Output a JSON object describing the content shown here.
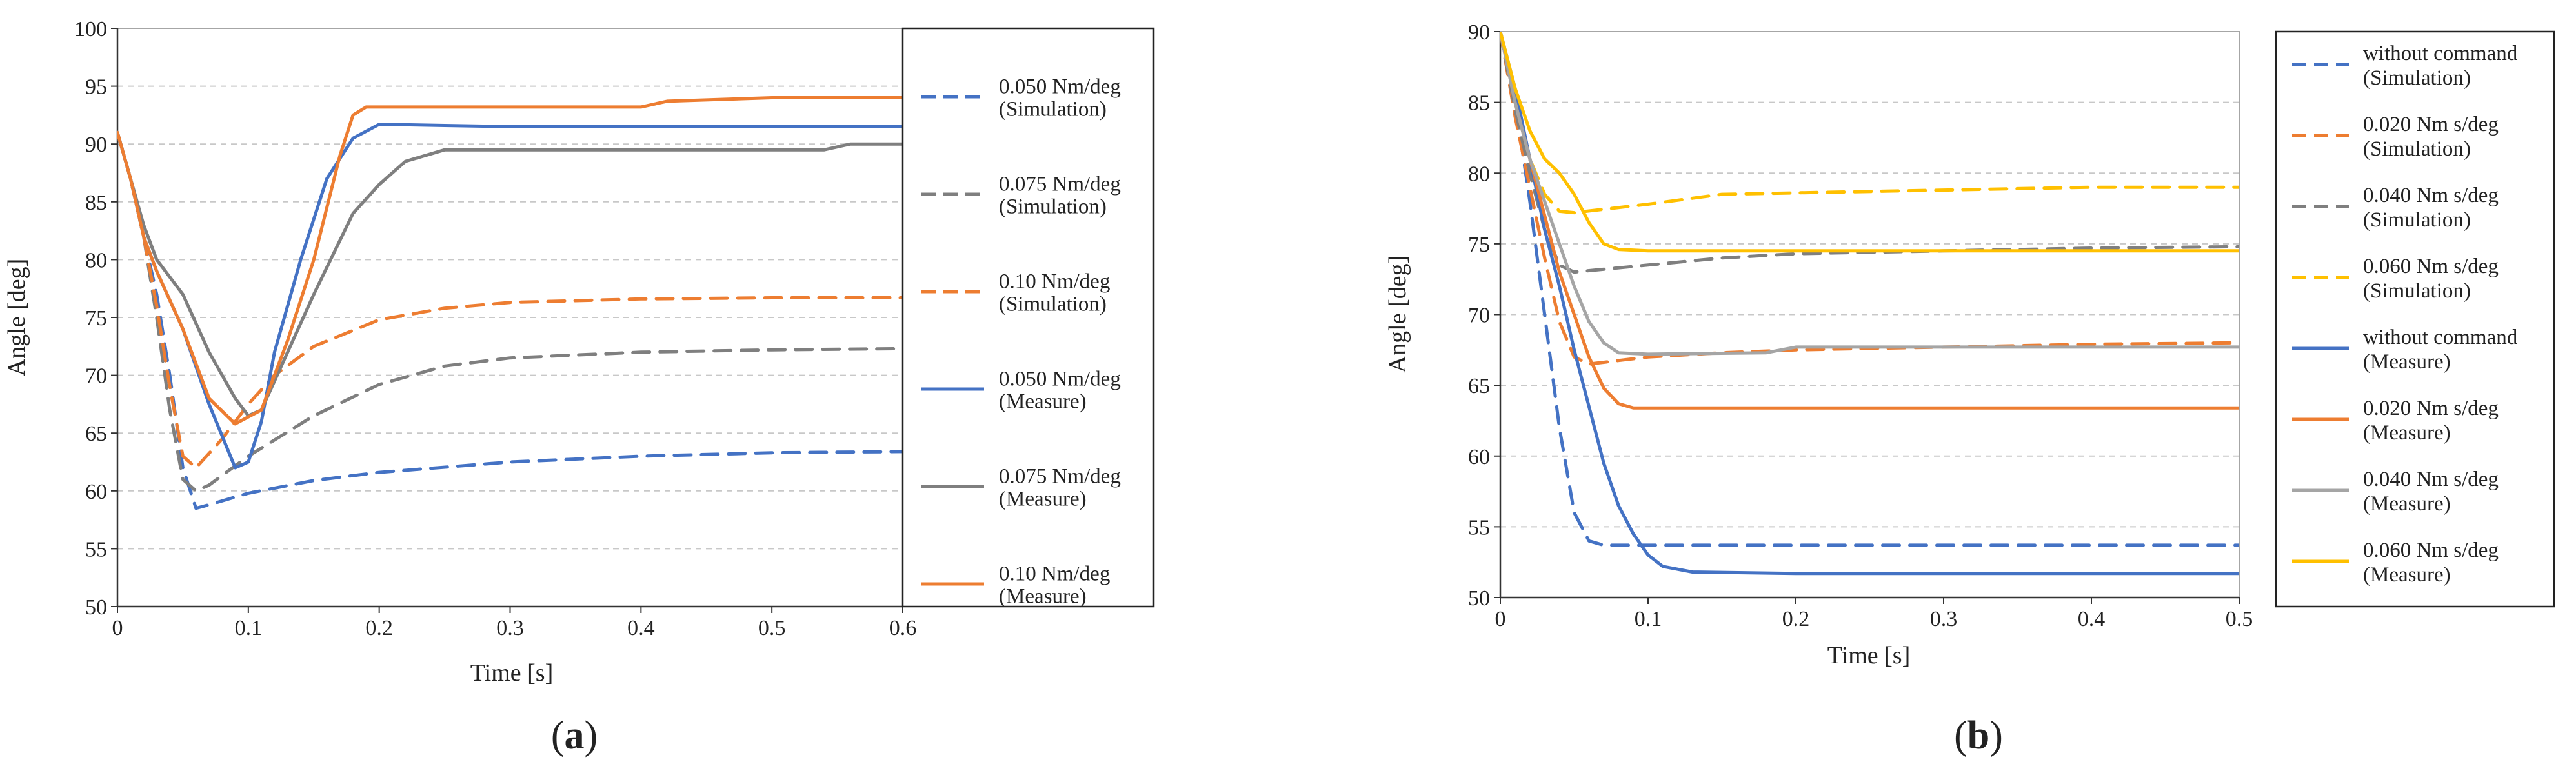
{
  "chart_data": [
    {
      "type": "line",
      "panel_label": {
        "open": "(",
        "letter": "a",
        "close": ")"
      },
      "xlabel": "Time [s]",
      "ylabel": "Angle [deg]",
      "xlim": [
        0,
        0.6
      ],
      "ylim": [
        50,
        100
      ],
      "x_ticks": [
        0,
        0.1,
        0.2,
        0.3,
        0.4,
        0.5,
        0.6
      ],
      "x_tick_labels": [
        "0",
        "0.1",
        "0.2",
        "0.3",
        "0.4",
        "0.5",
        "0.6"
      ],
      "y_ticks": [
        50,
        55,
        60,
        65,
        70,
        75,
        80,
        85,
        90,
        95,
        100
      ],
      "y_tick_labels": [
        "50",
        "55",
        "60",
        "65",
        "70",
        "75",
        "80",
        "85",
        "90",
        "95",
        "100"
      ],
      "grid": "horizontal-dashed",
      "legend_position": "right",
      "series": [
        {
          "name": "0.050 Nm/deg (Simulation)",
          "legend_lines": [
            "0.050 Nm/deg",
            "(Simulation)"
          ],
          "color": "#4472C4",
          "dash": true,
          "points": [
            [
              0,
              91
            ],
            [
              0.01,
              87
            ],
            [
              0.02,
              82
            ],
            [
              0.03,
              77
            ],
            [
              0.04,
              70
            ],
            [
              0.05,
              62
            ],
            [
              0.06,
              58.5
            ],
            [
              0.07,
              58.8
            ],
            [
              0.1,
              59.8
            ],
            [
              0.15,
              60.9
            ],
            [
              0.2,
              61.6
            ],
            [
              0.3,
              62.5
            ],
            [
              0.4,
              63
            ],
            [
              0.5,
              63.3
            ],
            [
              0.6,
              63.4
            ]
          ]
        },
        {
          "name": "0.075 Nm/deg (Simulation)",
          "legend_lines": [
            "0.075 Nm/deg",
            "(Simulation)"
          ],
          "color": "#7F7F7F",
          "dash": true,
          "points": [
            [
              0,
              91
            ],
            [
              0.01,
              87
            ],
            [
              0.02,
              82
            ],
            [
              0.03,
              75
            ],
            [
              0.04,
              67
            ],
            [
              0.05,
              61
            ],
            [
              0.06,
              60
            ],
            [
              0.07,
              60.5
            ],
            [
              0.1,
              63
            ],
            [
              0.15,
              66.5
            ],
            [
              0.2,
              69.2
            ],
            [
              0.25,
              70.8
            ],
            [
              0.3,
              71.5
            ],
            [
              0.4,
              72
            ],
            [
              0.5,
              72.2
            ],
            [
              0.6,
              72.3
            ]
          ]
        },
        {
          "name": "0.10 Nm/deg (Simulation)",
          "legend_lines": [
            "0.10 Nm/deg",
            "(Simulation)"
          ],
          "color": "#ED7D31",
          "dash": true,
          "points": [
            [
              0,
              91
            ],
            [
              0.01,
              87
            ],
            [
              0.02,
              82
            ],
            [
              0.03,
              76
            ],
            [
              0.04,
              69
            ],
            [
              0.05,
              63
            ],
            [
              0.06,
              62
            ],
            [
              0.08,
              64.5
            ],
            [
              0.1,
              67.5
            ],
            [
              0.12,
              70
            ],
            [
              0.15,
              72.5
            ],
            [
              0.2,
              74.8
            ],
            [
              0.25,
              75.8
            ],
            [
              0.3,
              76.3
            ],
            [
              0.4,
              76.6
            ],
            [
              0.5,
              76.7
            ],
            [
              0.6,
              76.7
            ]
          ]
        },
        {
          "name": "0.050 Nm/deg (Measure)",
          "legend_lines": [
            "0.050 Nm/deg",
            "(Measure)"
          ],
          "color": "#4472C4",
          "dash": false,
          "points": [
            [
              0,
              91
            ],
            [
              0.01,
              87
            ],
            [
              0.02,
              82
            ],
            [
              0.03,
              79
            ],
            [
              0.05,
              74
            ],
            [
              0.07,
              67.5
            ],
            [
              0.09,
              62
            ],
            [
              0.1,
              62.5
            ],
            [
              0.11,
              66
            ],
            [
              0.12,
              72
            ],
            [
              0.14,
              80
            ],
            [
              0.16,
              87
            ],
            [
              0.18,
              90.5
            ],
            [
              0.2,
              91.7
            ],
            [
              0.25,
              91.6
            ],
            [
              0.3,
              91.5
            ],
            [
              0.6,
              91.5
            ]
          ]
        },
        {
          "name": "0.075 Nm/deg (Measure)",
          "legend_lines": [
            "0.075 Nm/deg",
            "(Measure)"
          ],
          "color": "#7F7F7F",
          "dash": false,
          "points": [
            [
              0,
              91
            ],
            [
              0.01,
              87
            ],
            [
              0.02,
              83
            ],
            [
              0.03,
              80
            ],
            [
              0.05,
              77
            ],
            [
              0.07,
              72
            ],
            [
              0.09,
              68
            ],
            [
              0.1,
              66.5
            ],
            [
              0.11,
              67
            ],
            [
              0.13,
              72
            ],
            [
              0.15,
              77
            ],
            [
              0.18,
              84
            ],
            [
              0.2,
              86.5
            ],
            [
              0.22,
              88.5
            ],
            [
              0.25,
              89.5
            ],
            [
              0.4,
              89.5
            ],
            [
              0.54,
              89.5
            ],
            [
              0.56,
              90
            ],
            [
              0.6,
              90
            ]
          ]
        },
        {
          "name": "0.10 Nm/deg (Measure)",
          "legend_lines": [
            "0.10 Nm/deg",
            "(Measure)"
          ],
          "color": "#ED7D31",
          "dash": false,
          "points": [
            [
              0,
              91
            ],
            [
              0.01,
              87
            ],
            [
              0.02,
              82
            ],
            [
              0.03,
              79
            ],
            [
              0.05,
              74
            ],
            [
              0.07,
              68
            ],
            [
              0.09,
              65.8
            ],
            [
              0.11,
              67
            ],
            [
              0.13,
              73
            ],
            [
              0.15,
              80
            ],
            [
              0.17,
              89
            ],
            [
              0.18,
              92.5
            ],
            [
              0.19,
              93.2
            ],
            [
              0.3,
              93.2
            ],
            [
              0.4,
              93.2
            ],
            [
              0.42,
              93.7
            ],
            [
              0.5,
              94
            ],
            [
              0.6,
              94
            ]
          ]
        }
      ]
    },
    {
      "type": "line",
      "panel_label": {
        "open": "(",
        "letter": "b",
        "close": ")"
      },
      "xlabel": "Time [s]",
      "ylabel": "Angle [deg]",
      "xlim": [
        0,
        0.5
      ],
      "ylim": [
        50,
        90
      ],
      "x_ticks": [
        0,
        0.1,
        0.2,
        0.3,
        0.4,
        0.5
      ],
      "x_tick_labels": [
        "0",
        "0.1",
        "0.2",
        "0.3",
        "0.4",
        "0.5"
      ],
      "y_ticks": [
        50,
        55,
        60,
        65,
        70,
        75,
        80,
        85,
        90
      ],
      "y_tick_labels": [
        "50",
        "55",
        "60",
        "65",
        "70",
        "75",
        "80",
        "85",
        "90"
      ],
      "grid": "horizontal-dashed",
      "legend_position": "right",
      "series": [
        {
          "name": "without command (Simulation)",
          "legend_lines": [
            "without command",
            "(Simulation)"
          ],
          "color": "#4472C4",
          "dash": true,
          "points": [
            [
              0,
              90
            ],
            [
              0.01,
              85
            ],
            [
              0.02,
              78
            ],
            [
              0.03,
              70
            ],
            [
              0.04,
              62
            ],
            [
              0.05,
              56
            ],
            [
              0.06,
              54
            ],
            [
              0.07,
              53.7
            ],
            [
              0.5,
              53.7
            ]
          ]
        },
        {
          "name": "0.020 Nm s/deg (Simulation)",
          "legend_lines": [
            "0.020 Nm s/deg",
            "(Simulation)"
          ],
          "color": "#ED7D31",
          "dash": true,
          "points": [
            [
              0,
              90
            ],
            [
              0.01,
              84
            ],
            [
              0.02,
              79
            ],
            [
              0.03,
              74
            ],
            [
              0.04,
              69.5
            ],
            [
              0.05,
              67
            ],
            [
              0.06,
              66.5
            ],
            [
              0.1,
              67
            ],
            [
              0.15,
              67.3
            ],
            [
              0.2,
              67.5
            ],
            [
              0.3,
              67.7
            ],
            [
              0.4,
              67.9
            ],
            [
              0.5,
              68
            ]
          ]
        },
        {
          "name": "0.040 Nm s/deg (Simulation)",
          "legend_lines": [
            "0.040 Nm s/deg",
            "(Simulation)"
          ],
          "color": "#7F7F7F",
          "dash": true,
          "points": [
            [
              0,
              90
            ],
            [
              0.01,
              84.5
            ],
            [
              0.02,
              80
            ],
            [
              0.03,
              76
            ],
            [
              0.04,
              73.5
            ],
            [
              0.05,
              73
            ],
            [
              0.1,
              73.5
            ],
            [
              0.15,
              74
            ],
            [
              0.2,
              74.3
            ],
            [
              0.3,
              74.5
            ],
            [
              0.4,
              74.7
            ],
            [
              0.5,
              74.8
            ]
          ]
        },
        {
          "name": "0.060 Nm s/deg (Simulation)",
          "legend_lines": [
            "0.060 Nm s/deg",
            "(Simulation)"
          ],
          "color": "#FFC000",
          "dash": true,
          "points": [
            [
              0,
              90
            ],
            [
              0.01,
              85
            ],
            [
              0.02,
              81
            ],
            [
              0.03,
              78.5
            ],
            [
              0.04,
              77.3
            ],
            [
              0.05,
              77.2
            ],
            [
              0.1,
              77.8
            ],
            [
              0.15,
              78.5
            ],
            [
              0.2,
              78.6
            ],
            [
              0.3,
              78.8
            ],
            [
              0.4,
              79
            ],
            [
              0.5,
              79
            ]
          ]
        },
        {
          "name": "without command (Measure)",
          "legend_lines": [
            "without command",
            "(Measure)"
          ],
          "color": "#4472C4",
          "dash": false,
          "points": [
            [
              0,
              90
            ],
            [
              0.01,
              86
            ],
            [
              0.02,
              81
            ],
            [
              0.03,
              76
            ],
            [
              0.04,
              72
            ],
            [
              0.05,
              67.5
            ],
            [
              0.06,
              63.5
            ],
            [
              0.07,
              59.5
            ],
            [
              0.08,
              56.5
            ],
            [
              0.09,
              54.5
            ],
            [
              0.1,
              53
            ],
            [
              0.11,
              52.2
            ],
            [
              0.13,
              51.8
            ],
            [
              0.2,
              51.7
            ],
            [
              0.5,
              51.7
            ]
          ]
        },
        {
          "name": "0.020 Nm s/deg (Measure)",
          "legend_lines": [
            "0.020 Nm s/deg",
            "(Measure)"
          ],
          "color": "#ED7D31",
          "dash": false,
          "points": [
            [
              0,
              90
            ],
            [
              0.01,
              85
            ],
            [
              0.02,
              81
            ],
            [
              0.03,
              77
            ],
            [
              0.04,
              73
            ],
            [
              0.05,
              70
            ],
            [
              0.06,
              67
            ],
            [
              0.07,
              64.8
            ],
            [
              0.08,
              63.7
            ],
            [
              0.09,
              63.4
            ],
            [
              0.5,
              63.4
            ]
          ]
        },
        {
          "name": "0.040 Nm s/deg (Measure)",
          "legend_lines": [
            "0.040 Nm s/deg",
            "(Measure)"
          ],
          "color": "#A5A5A5",
          "dash": false,
          "points": [
            [
              0,
              90
            ],
            [
              0.01,
              85
            ],
            [
              0.02,
              81
            ],
            [
              0.03,
              78
            ],
            [
              0.04,
              75
            ],
            [
              0.05,
              72
            ],
            [
              0.06,
              69.5
            ],
            [
              0.07,
              68
            ],
            [
              0.08,
              67.3
            ],
            [
              0.1,
              67.2
            ],
            [
              0.18,
              67.3
            ],
            [
              0.2,
              67.7
            ],
            [
              0.5,
              67.7
            ]
          ]
        },
        {
          "name": "0.060 Nm s/deg (Measure)",
          "legend_lines": [
            "0.060 Nm s/deg",
            "(Measure)"
          ],
          "color": "#FFC000",
          "dash": false,
          "points": [
            [
              0,
              90
            ],
            [
              0.01,
              86
            ],
            [
              0.02,
              83
            ],
            [
              0.03,
              81
            ],
            [
              0.04,
              80
            ],
            [
              0.05,
              78.5
            ],
            [
              0.06,
              76.5
            ],
            [
              0.07,
              75
            ],
            [
              0.08,
              74.6
            ],
            [
              0.1,
              74.5
            ],
            [
              0.5,
              74.5
            ]
          ]
        }
      ]
    }
  ]
}
